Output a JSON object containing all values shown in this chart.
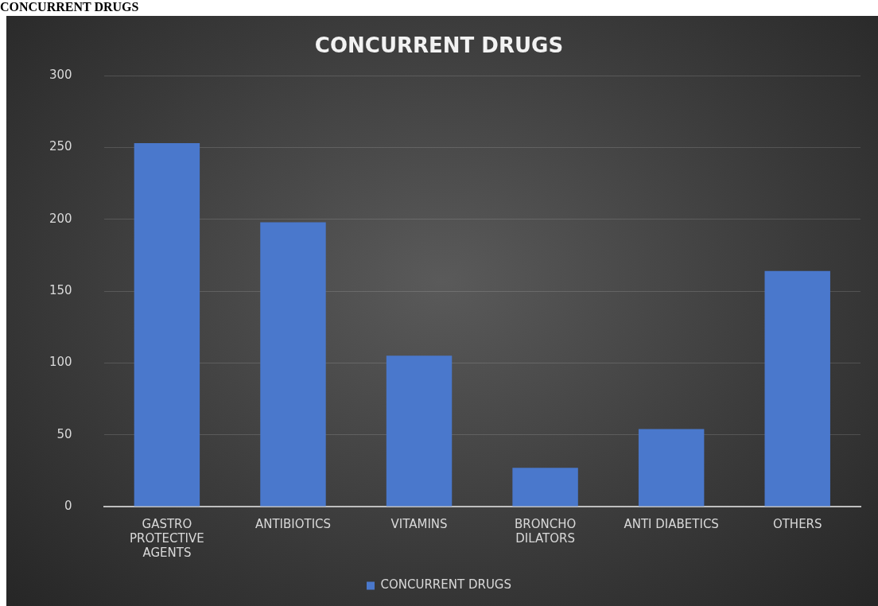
{
  "chart_data": {
    "type": "bar",
    "title": "CONCURRENT DRUGS",
    "annotations": [
      "CONCURRENT DRUGS"
    ],
    "categories": [
      "GASTRO\nPROTECTIVE\nAGENTS",
      "ANTIBIOTICS",
      "VITAMINS",
      "BRONCHO\nDILATORS",
      "ANTI DIABETICS",
      "OTHERS"
    ],
    "series": [
      {
        "name": "CONCURRENT DRUGS",
        "color": "#4a78cc",
        "values": [
          253,
          198,
          105,
          27,
          54,
          164
        ]
      }
    ],
    "ylim": [
      0,
      300
    ],
    "yticks": [
      0,
      50,
      100,
      150,
      200,
      250,
      300
    ],
    "grid": "y",
    "legend": "bottom"
  }
}
